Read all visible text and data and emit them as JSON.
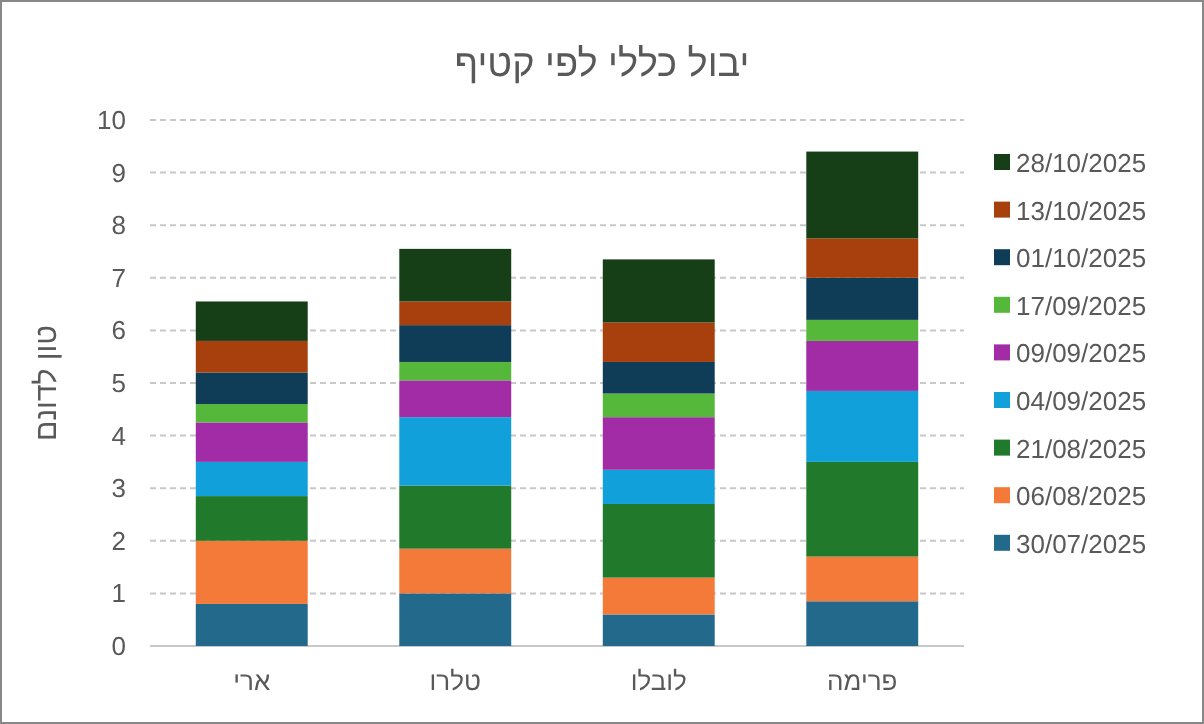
{
  "chart_data": {
    "type": "bar",
    "stacked": true,
    "title": "יבול כללי לפי קטיף",
    "ylabel": "טון לדונם",
    "categories": [
      "ארי",
      "טלרו",
      "לובלו",
      "פרימה"
    ],
    "ylim": [
      0,
      10
    ],
    "yticks": [
      0,
      1,
      2,
      3,
      4,
      5,
      6,
      7,
      8,
      9,
      10
    ],
    "grid": "y",
    "legend": "right",
    "series": [
      {
        "name": "30/07/2025",
        "color": "#23698c",
        "values": [
          0.8,
          1.0,
          0.6,
          0.85
        ]
      },
      {
        "name": "06/08/2025",
        "color": "#f47a3a",
        "values": [
          1.2,
          0.85,
          0.7,
          0.85
        ]
      },
      {
        "name": "21/08/2025",
        "color": "#217a2b",
        "values": [
          0.85,
          1.2,
          1.4,
          1.8
        ]
      },
      {
        "name": "04/09/2025",
        "color": "#12a0db",
        "values": [
          0.65,
          1.3,
          0.65,
          1.35
        ]
      },
      {
        "name": "09/09/2025",
        "color": "#a22ba6",
        "values": [
          0.75,
          0.7,
          1.0,
          0.95
        ]
      },
      {
        "name": "17/09/2025",
        "color": "#55b83a",
        "values": [
          0.35,
          0.35,
          0.45,
          0.4
        ]
      },
      {
        "name": "01/10/2025",
        "color": "#0f3d57",
        "values": [
          0.6,
          0.7,
          0.6,
          0.8
        ]
      },
      {
        "name": "13/10/2025",
        "color": "#a8400e",
        "values": [
          0.6,
          0.45,
          0.75,
          0.75
        ]
      },
      {
        "name": "28/10/2025",
        "color": "#173f17",
        "values": [
          0.75,
          1.0,
          1.2,
          1.65
        ]
      }
    ]
  }
}
